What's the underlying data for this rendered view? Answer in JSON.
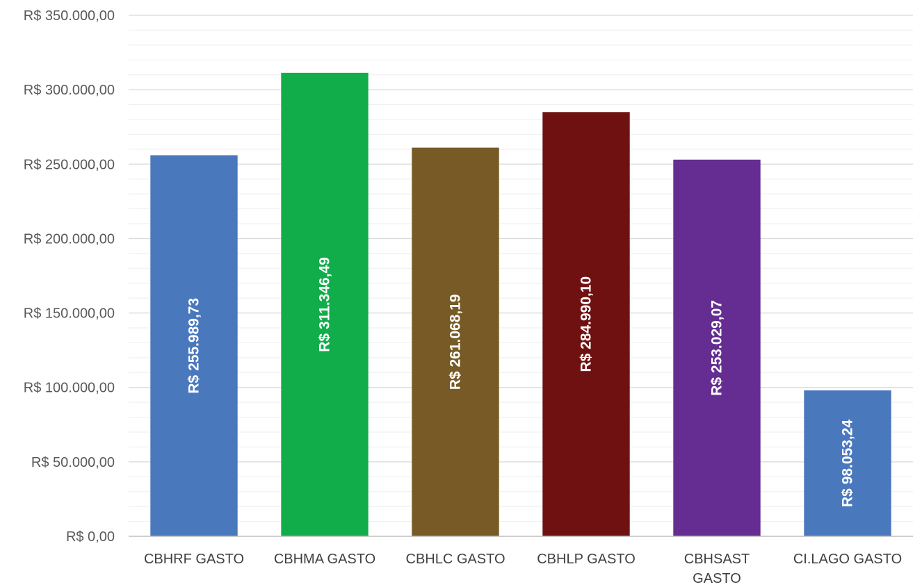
{
  "chart_data": {
    "type": "bar",
    "title": "",
    "xlabel": "",
    "ylabel": "",
    "categories": [
      "CBHRF GASTO",
      "CBHMA GASTO",
      "CBHLC GASTO",
      "CBHLP GASTO",
      "CBHSAST GASTO",
      "CI.LAGO GASTO"
    ],
    "category_lines": [
      [
        "CBHRF GASTO"
      ],
      [
        "CBHMA GASTO"
      ],
      [
        "CBHLC GASTO"
      ],
      [
        "CBHLP GASTO"
      ],
      [
        "CBHSAST",
        "GASTO"
      ],
      [
        "CI.LAGO GASTO"
      ]
    ],
    "values": [
      255989.73,
      311346.49,
      261068.19,
      284990.1,
      253029.07,
      98053.24
    ],
    "value_labels": [
      "R$ 255.989,73",
      "R$ 311.346,49",
      "R$ 261.068,19",
      "R$ 284.990,10",
      "R$ 253.029,07",
      "R$ 98.053,24"
    ],
    "colors": [
      "#4a78bd",
      "#12ad4b",
      "#775a25",
      "#701111",
      "#652d92",
      "#4a78bd"
    ],
    "ylim": [
      0,
      350000
    ],
    "major_step": 50000,
    "minor_step": 10000,
    "y_ticks": [
      {
        "value": 0,
        "label": "R$ 0,00"
      },
      {
        "value": 50000,
        "label": "R$ 50.000,00"
      },
      {
        "value": 100000,
        "label": "R$ 100.000,00"
      },
      {
        "value": 150000,
        "label": "R$ 150.000,00"
      },
      {
        "value": 200000,
        "label": "R$ 200.000,00"
      },
      {
        "value": 250000,
        "label": "R$ 250.000,00"
      },
      {
        "value": 300000,
        "label": "R$ 300.000,00"
      },
      {
        "value": 350000,
        "label": "R$ 350.000,00"
      }
    ],
    "grid": true,
    "legend": "none"
  }
}
